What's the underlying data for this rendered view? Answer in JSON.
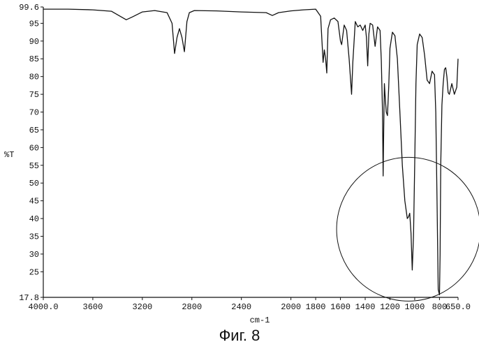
{
  "chart_data": {
    "type": "line",
    "xlabel": "cm-1",
    "ylabel": "%T",
    "xlim": [
      4000.0,
      650.0
    ],
    "ylim": [
      17.8,
      99.6
    ],
    "x_ticks": [
      4000.0,
      3600,
      3200,
      2800,
      2400,
      2000,
      1800,
      1600,
      1400,
      1200,
      1000,
      800,
      650.0
    ],
    "x_tick_labels": [
      "4000.0",
      "3600",
      "3200",
      "2800",
      "2400",
      "2000",
      "1800",
      "1600",
      "1400",
      "1200",
      "1000",
      "800",
      "650.0"
    ],
    "y_ticks": [
      99.6,
      95,
      90,
      85,
      80,
      75,
      70,
      65,
      60,
      55,
      50,
      45,
      40,
      35,
      30,
      25,
      17.8
    ],
    "y_tick_labels": [
      "99.6",
      "95",
      "90",
      "85",
      "80",
      "75",
      "70",
      "65",
      "60",
      "55",
      "50",
      "45",
      "40",
      "35",
      "30",
      "25",
      "17.8"
    ],
    "grid": false,
    "series": [
      {
        "x": [
          4000,
          3800,
          3600,
          3450,
          3380,
          3330,
          3280,
          3200,
          3100,
          3000,
          2960,
          2940,
          2920,
          2900,
          2880,
          2860,
          2840,
          2820,
          2780,
          2600,
          2400,
          2200,
          2150,
          2100,
          2000,
          1900,
          1800,
          1760,
          1740,
          1730,
          1720,
          1710,
          1700,
          1680,
          1650,
          1620,
          1600,
          1590,
          1570,
          1550,
          1530,
          1510,
          1500,
          1480,
          1460,
          1440,
          1420,
          1400,
          1390,
          1380,
          1370,
          1360,
          1340,
          1320,
          1300,
          1280,
          1270,
          1260,
          1255,
          1250,
          1245,
          1240,
          1230,
          1220,
          1210,
          1200,
          1180,
          1160,
          1140,
          1120,
          1100,
          1080,
          1060,
          1050,
          1040,
          1030,
          1020,
          1010,
          1000,
          990,
          980,
          960,
          940,
          920,
          900,
          880,
          860,
          850,
          840,
          830,
          820,
          810,
          800,
          795,
          790,
          780,
          770,
          760,
          750,
          740,
          730,
          720,
          700,
          680,
          660,
          650
        ],
        "y": [
          99.0,
          99.0,
          98.8,
          98.4,
          97.0,
          96.0,
          96.8,
          98.2,
          98.6,
          98.0,
          95.0,
          86.5,
          91.0,
          93.5,
          91.0,
          87.0,
          95.5,
          98.0,
          98.6,
          98.5,
          98.2,
          98.0,
          97.2,
          98.0,
          98.5,
          98.8,
          99.0,
          97.0,
          84.0,
          87.5,
          85.0,
          81.0,
          93.5,
          96.0,
          96.5,
          95.5,
          90.0,
          89.0,
          94.5,
          93.0,
          85.0,
          75.0,
          84.0,
          95.5,
          94.0,
          94.5,
          93.0,
          94.5,
          91.0,
          83.0,
          92.0,
          95.0,
          94.5,
          88.5,
          94.0,
          93.0,
          84.5,
          70.0,
          52.0,
          66.0,
          78.0,
          75.0,
          70.0,
          69.0,
          77.0,
          88.0,
          92.5,
          91.5,
          85.0,
          70.0,
          55.0,
          45.0,
          40.0,
          40.5,
          41.5,
          36.0,
          25.5,
          35.0,
          55.0,
          78.0,
          89.0,
          92.0,
          91.0,
          86.0,
          79.0,
          78.0,
          81.5,
          81.0,
          80.5,
          70.0,
          45.0,
          20.0,
          18.5,
          30.0,
          55.0,
          72.0,
          78.0,
          82.0,
          82.5,
          80.0,
          75.5,
          75.0,
          78.0,
          75.0,
          77.0,
          85.0
        ]
      }
    ],
    "annotations": [
      {
        "type": "circle",
        "center": [
          1050,
          37.0
        ],
        "note": "hand-drawn circle around 1050–800 cm-1 region"
      }
    ]
  },
  "caption": "Фиг. 8"
}
